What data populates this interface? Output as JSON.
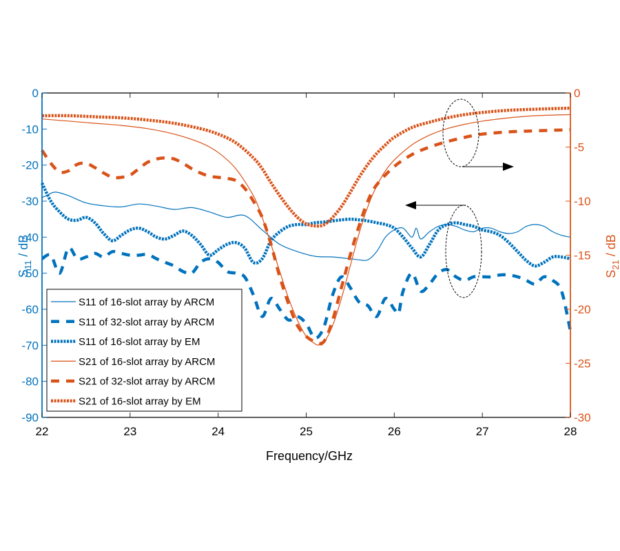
{
  "chart_data": {
    "type": "line",
    "title": "",
    "xlabel": "Frequency/GHz",
    "ylabel_left": {
      "main": "S",
      "sub": "11",
      "suffix": " / dB"
    },
    "ylabel_right": {
      "main": "S",
      "sub": "21",
      "suffix": " / dB"
    },
    "xlim": [
      22,
      28
    ],
    "ylim_left": [
      -90,
      0
    ],
    "ylim_right": [
      -30,
      0
    ],
    "x_ticks": [
      "22",
      "23",
      "24",
      "25",
      "26",
      "27",
      "28"
    ],
    "y_left_ticks": [
      "0",
      "-10",
      "-20",
      "-30",
      "-40",
      "-50",
      "-60",
      "-70",
      "-80",
      "-90"
    ],
    "y_right_ticks": [
      "0",
      "-5",
      "-10",
      "-15",
      "-20",
      "-25",
      "-30"
    ],
    "grid": false,
    "legend_position": "bottom-left",
    "colors": {
      "s11": "#0072BD",
      "s21": "#D95319"
    },
    "series": [
      {
        "name": "S11 of 16-slot array by ARCM",
        "axis": "left",
        "style": "solid",
        "color": "#0072BD",
        "x": [
          22.0,
          22.05,
          22.15,
          22.3,
          22.5,
          22.7,
          22.9,
          23.1,
          23.3,
          23.5,
          23.7,
          23.9,
          24.1,
          24.3,
          24.5,
          24.7,
          24.9,
          25.1,
          25.3,
          25.5,
          25.6,
          25.7,
          25.8,
          25.9,
          26.0,
          26.1,
          26.2,
          26.25,
          26.3,
          26.4,
          26.5,
          26.6,
          26.7,
          26.8,
          26.9,
          27.0,
          27.1,
          27.2,
          27.3,
          27.4,
          27.5,
          27.6,
          27.7,
          27.8,
          27.9,
          28.0
        ],
        "y": [
          -29,
          -28.5,
          -27.5,
          -28.5,
          -30.5,
          -31.3,
          -31.6,
          -30.8,
          -31.4,
          -32.3,
          -31.8,
          -33,
          -34.5,
          -34,
          -38,
          -42,
          -44,
          -45.3,
          -45.5,
          -46,
          -46.3,
          -46.3,
          -44,
          -40,
          -38,
          -37.5,
          -40,
          -37.5,
          -40.5,
          -38.5,
          -37,
          -36.5,
          -37,
          -38,
          -38.5,
          -37.5,
          -37.5,
          -38.5,
          -39,
          -38.5,
          -37,
          -36.5,
          -37,
          -38.5,
          -39.5,
          -40
        ]
      },
      {
        "name": "S11 of 32-slot array by ARCM",
        "axis": "left",
        "style": "dashed",
        "color": "#0072BD",
        "x": [
          22.0,
          22.1,
          22.2,
          22.3,
          22.4,
          22.5,
          22.6,
          22.7,
          22.8,
          22.9,
          23.0,
          23.1,
          23.2,
          23.3,
          23.4,
          23.5,
          23.6,
          23.7,
          23.8,
          23.9,
          24.0,
          24.1,
          24.2,
          24.3,
          24.4,
          24.5,
          24.6,
          24.7,
          24.8,
          24.9,
          25.0,
          25.1,
          25.2,
          25.3,
          25.4,
          25.5,
          25.6,
          25.7,
          25.8,
          25.9,
          26.0,
          26.05,
          26.1,
          26.2,
          26.3,
          26.4,
          26.5,
          26.6,
          26.7,
          26.8,
          26.9,
          27.0,
          27.1,
          27.2,
          27.3,
          27.4,
          27.5,
          27.6,
          27.7,
          27.8,
          27.9,
          28.0
        ],
        "y": [
          -46,
          -45,
          -50,
          -43,
          -46,
          -45.5,
          -44.5,
          -45.5,
          -44,
          -44.5,
          -45,
          -45,
          -44.8,
          -46,
          -47,
          -48,
          -49.5,
          -50,
          -47,
          -46,
          -47,
          -49.5,
          -50,
          -51,
          -56,
          -62,
          -57,
          -60,
          -63,
          -62,
          -64,
          -68,
          -65,
          -56,
          -51,
          -54,
          -58,
          -59,
          -62,
          -57,
          -60,
          -61,
          -55,
          -50,
          -55,
          -53,
          -50,
          -49,
          -51,
          -52,
          -51,
          -51,
          -51,
          -50.5,
          -50.5,
          -51,
          -52,
          -53,
          -51,
          -52,
          -55,
          -66
        ]
      },
      {
        "name": "S11 of 16-slot array by EM",
        "axis": "left",
        "style": "dotted",
        "color": "#0072BD",
        "x": [
          22.0,
          22.1,
          22.2,
          22.3,
          22.4,
          22.5,
          22.6,
          22.7,
          22.8,
          22.9,
          23.0,
          23.1,
          23.2,
          23.3,
          23.4,
          23.5,
          23.6,
          23.7,
          23.8,
          23.9,
          24.0,
          24.1,
          24.2,
          24.3,
          24.4,
          24.5,
          24.6,
          24.7,
          24.8,
          24.9,
          25.0,
          25.1,
          25.2,
          25.3,
          25.4,
          25.5,
          25.6,
          25.7,
          25.8,
          25.9,
          26.0,
          26.1,
          26.2,
          26.3,
          26.4,
          26.5,
          26.6,
          26.7,
          26.8,
          26.9,
          27.0,
          27.1,
          27.2,
          27.3,
          27.4,
          27.5,
          27.6,
          27.7,
          27.8,
          27.9,
          28.0
        ],
        "y": [
          -25,
          -30,
          -33,
          -35,
          -35.3,
          -34.5,
          -36,
          -39,
          -41,
          -39.5,
          -38,
          -37.5,
          -38.5,
          -40,
          -40.5,
          -39.5,
          -38.3,
          -39.5,
          -42,
          -45,
          -43.5,
          -42,
          -41.5,
          -43,
          -47,
          -46,
          -41,
          -38.5,
          -37,
          -36.5,
          -36.5,
          -36,
          -35.8,
          -35.5,
          -35.2,
          -35,
          -35.2,
          -35.5,
          -36,
          -36.5,
          -37.5,
          -40,
          -43,
          -45.5,
          -42,
          -38,
          -36.5,
          -36,
          -36.5,
          -37,
          -38,
          -38.5,
          -39.5,
          -41.5,
          -44,
          -46.5,
          -48,
          -47,
          -45.5,
          -45.5,
          -46
        ]
      },
      {
        "name": "S21 of 16-slot array by ARCM",
        "axis": "right",
        "style": "solid",
        "color": "#D95319",
        "x": [
          22.0,
          22.3,
          22.6,
          22.9,
          23.2,
          23.5,
          23.8,
          24.0,
          24.2,
          24.4,
          24.5,
          24.6,
          24.7,
          24.8,
          24.9,
          25.0,
          25.1,
          25.15,
          25.2,
          25.3,
          25.4,
          25.5,
          25.6,
          25.7,
          25.8,
          25.9,
          26.0,
          26.2,
          26.4,
          26.6,
          26.8,
          27.0,
          27.3,
          27.6,
          28.0
        ],
        "y": [
          -2.4,
          -2.6,
          -2.8,
          -3.0,
          -3.3,
          -3.8,
          -4.6,
          -5.5,
          -7.0,
          -9.5,
          -11.5,
          -14,
          -16.5,
          -19,
          -21,
          -22.5,
          -23.2,
          -23.3,
          -23.1,
          -21.5,
          -19,
          -16,
          -13,
          -10.5,
          -8.6,
          -7.2,
          -6.2,
          -4.8,
          -3.9,
          -3.3,
          -2.9,
          -2.6,
          -2.3,
          -2.1,
          -2.0
        ]
      },
      {
        "name": "S21 of 32-slot array by ARCM",
        "axis": "right",
        "style": "dashed",
        "color": "#D95319",
        "x": [
          22.0,
          22.1,
          22.2,
          22.3,
          22.4,
          22.5,
          22.6,
          22.7,
          22.8,
          22.9,
          23.0,
          23.1,
          23.2,
          23.3,
          23.4,
          23.5,
          23.6,
          23.7,
          23.8,
          23.9,
          24.0,
          24.1,
          24.2,
          24.3,
          24.4,
          24.5,
          24.6,
          24.7,
          24.8,
          24.9,
          25.0,
          25.1,
          25.2,
          25.3,
          25.4,
          25.5,
          25.6,
          25.7,
          25.8,
          26.0,
          26.2,
          26.4,
          26.6,
          26.8,
          27.0,
          27.3,
          27.6,
          28.0
        ],
        "y": [
          -5.3,
          -6.5,
          -7.3,
          -7.2,
          -6.6,
          -6.5,
          -6.9,
          -7.4,
          -7.8,
          -7.8,
          -7.6,
          -7.0,
          -6.4,
          -6.1,
          -6.0,
          -6.1,
          -6.5,
          -7.0,
          -7.4,
          -7.7,
          -7.8,
          -7.9,
          -8.1,
          -8.8,
          -10,
          -11.5,
          -14,
          -17,
          -19.5,
          -21.5,
          -22.5,
          -23,
          -23,
          -21,
          -18,
          -15,
          -12.3,
          -10,
          -8.5,
          -6.8,
          -5.7,
          -5.0,
          -4.5,
          -4.1,
          -3.8,
          -3.6,
          -3.5,
          -3.4
        ]
      },
      {
        "name": "S21 of 16-slot array by EM",
        "axis": "right",
        "style": "dotted",
        "color": "#D95319",
        "x": [
          22.0,
          22.3,
          22.6,
          22.9,
          23.2,
          23.5,
          23.8,
          24.0,
          24.2,
          24.4,
          24.5,
          24.6,
          24.7,
          24.8,
          24.9,
          25.0,
          25.1,
          25.2,
          25.3,
          25.4,
          25.5,
          25.6,
          25.7,
          25.8,
          25.9,
          26.0,
          26.2,
          26.4,
          26.6,
          26.8,
          27.0,
          27.3,
          27.6,
          28.0
        ],
        "y": [
          -2.1,
          -2.1,
          -2.2,
          -2.3,
          -2.5,
          -2.8,
          -3.3,
          -3.8,
          -4.6,
          -6.0,
          -7.0,
          -8.3,
          -9.5,
          -10.6,
          -11.5,
          -12.1,
          -12.3,
          -12.2,
          -11.5,
          -10.5,
          -9.2,
          -7.8,
          -6.6,
          -5.6,
          -4.8,
          -4.1,
          -3.2,
          -2.7,
          -2.3,
          -2.0,
          -1.8,
          -1.6,
          -1.5,
          -1.4
        ]
      }
    ],
    "annotations": [
      {
        "type": "ellipse-with-arrow",
        "target": "S21 curves",
        "arrow_direction": "right",
        "at_x": 26.75
      },
      {
        "type": "ellipse-with-arrow",
        "target": "S11 curves",
        "arrow_direction": "left",
        "at_x": 26.75
      }
    ]
  }
}
